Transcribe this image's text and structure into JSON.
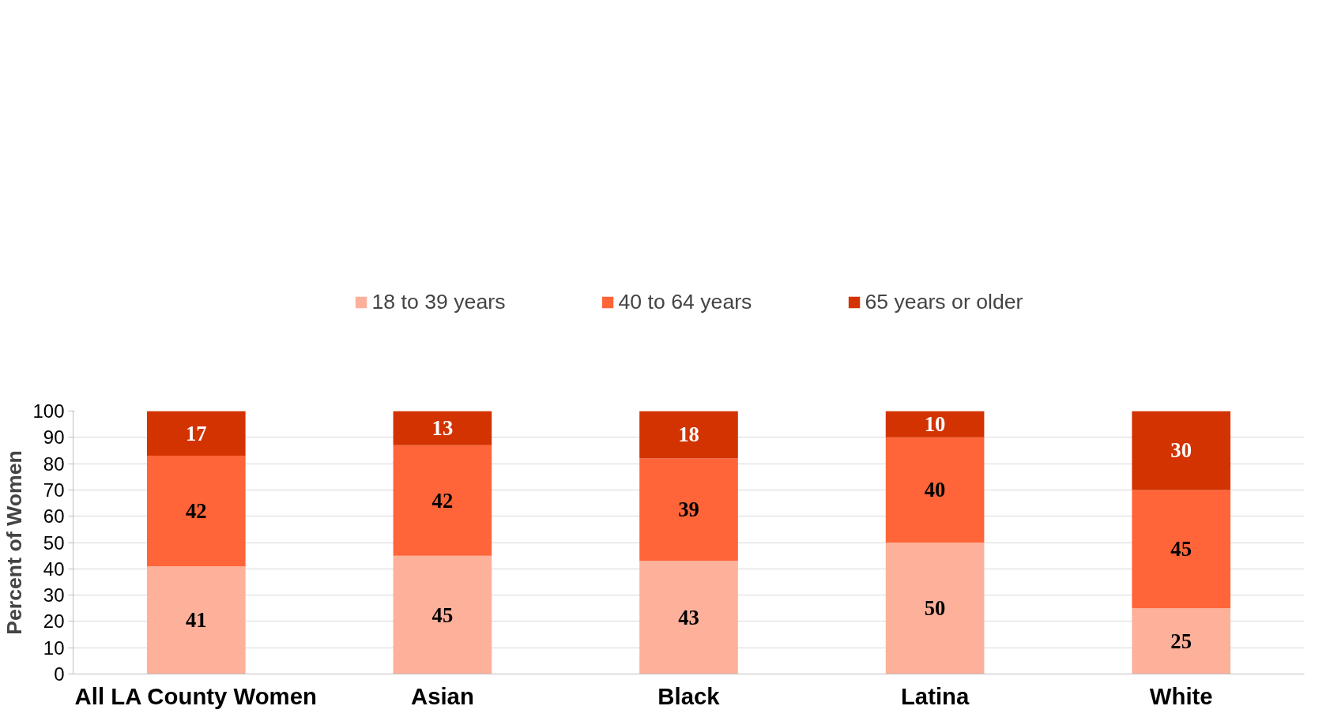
{
  "chart_data": {
    "type": "bar",
    "stacked": true,
    "ylabel": "Percent of Women",
    "categories": [
      "All LA County Women",
      "Asian",
      "Black",
      "Latina",
      "White"
    ],
    "series": [
      {
        "name": "18 to 39 years",
        "color": "#fdb09a",
        "values": [
          41,
          45,
          43,
          50,
          25
        ]
      },
      {
        "name": "40 to 64 years",
        "color": "#ff6538",
        "values": [
          42,
          42,
          39,
          40,
          45
        ]
      },
      {
        "name": "65 years or older",
        "color": "#d23300",
        "values": [
          17,
          13,
          18,
          10,
          30
        ]
      }
    ],
    "ylim": [
      0,
      100
    ],
    "yticks": [
      0,
      10,
      20,
      30,
      40,
      50,
      60,
      70,
      80,
      90,
      100
    ],
    "grid": "y",
    "legend": "top",
    "data_labels": true
  }
}
